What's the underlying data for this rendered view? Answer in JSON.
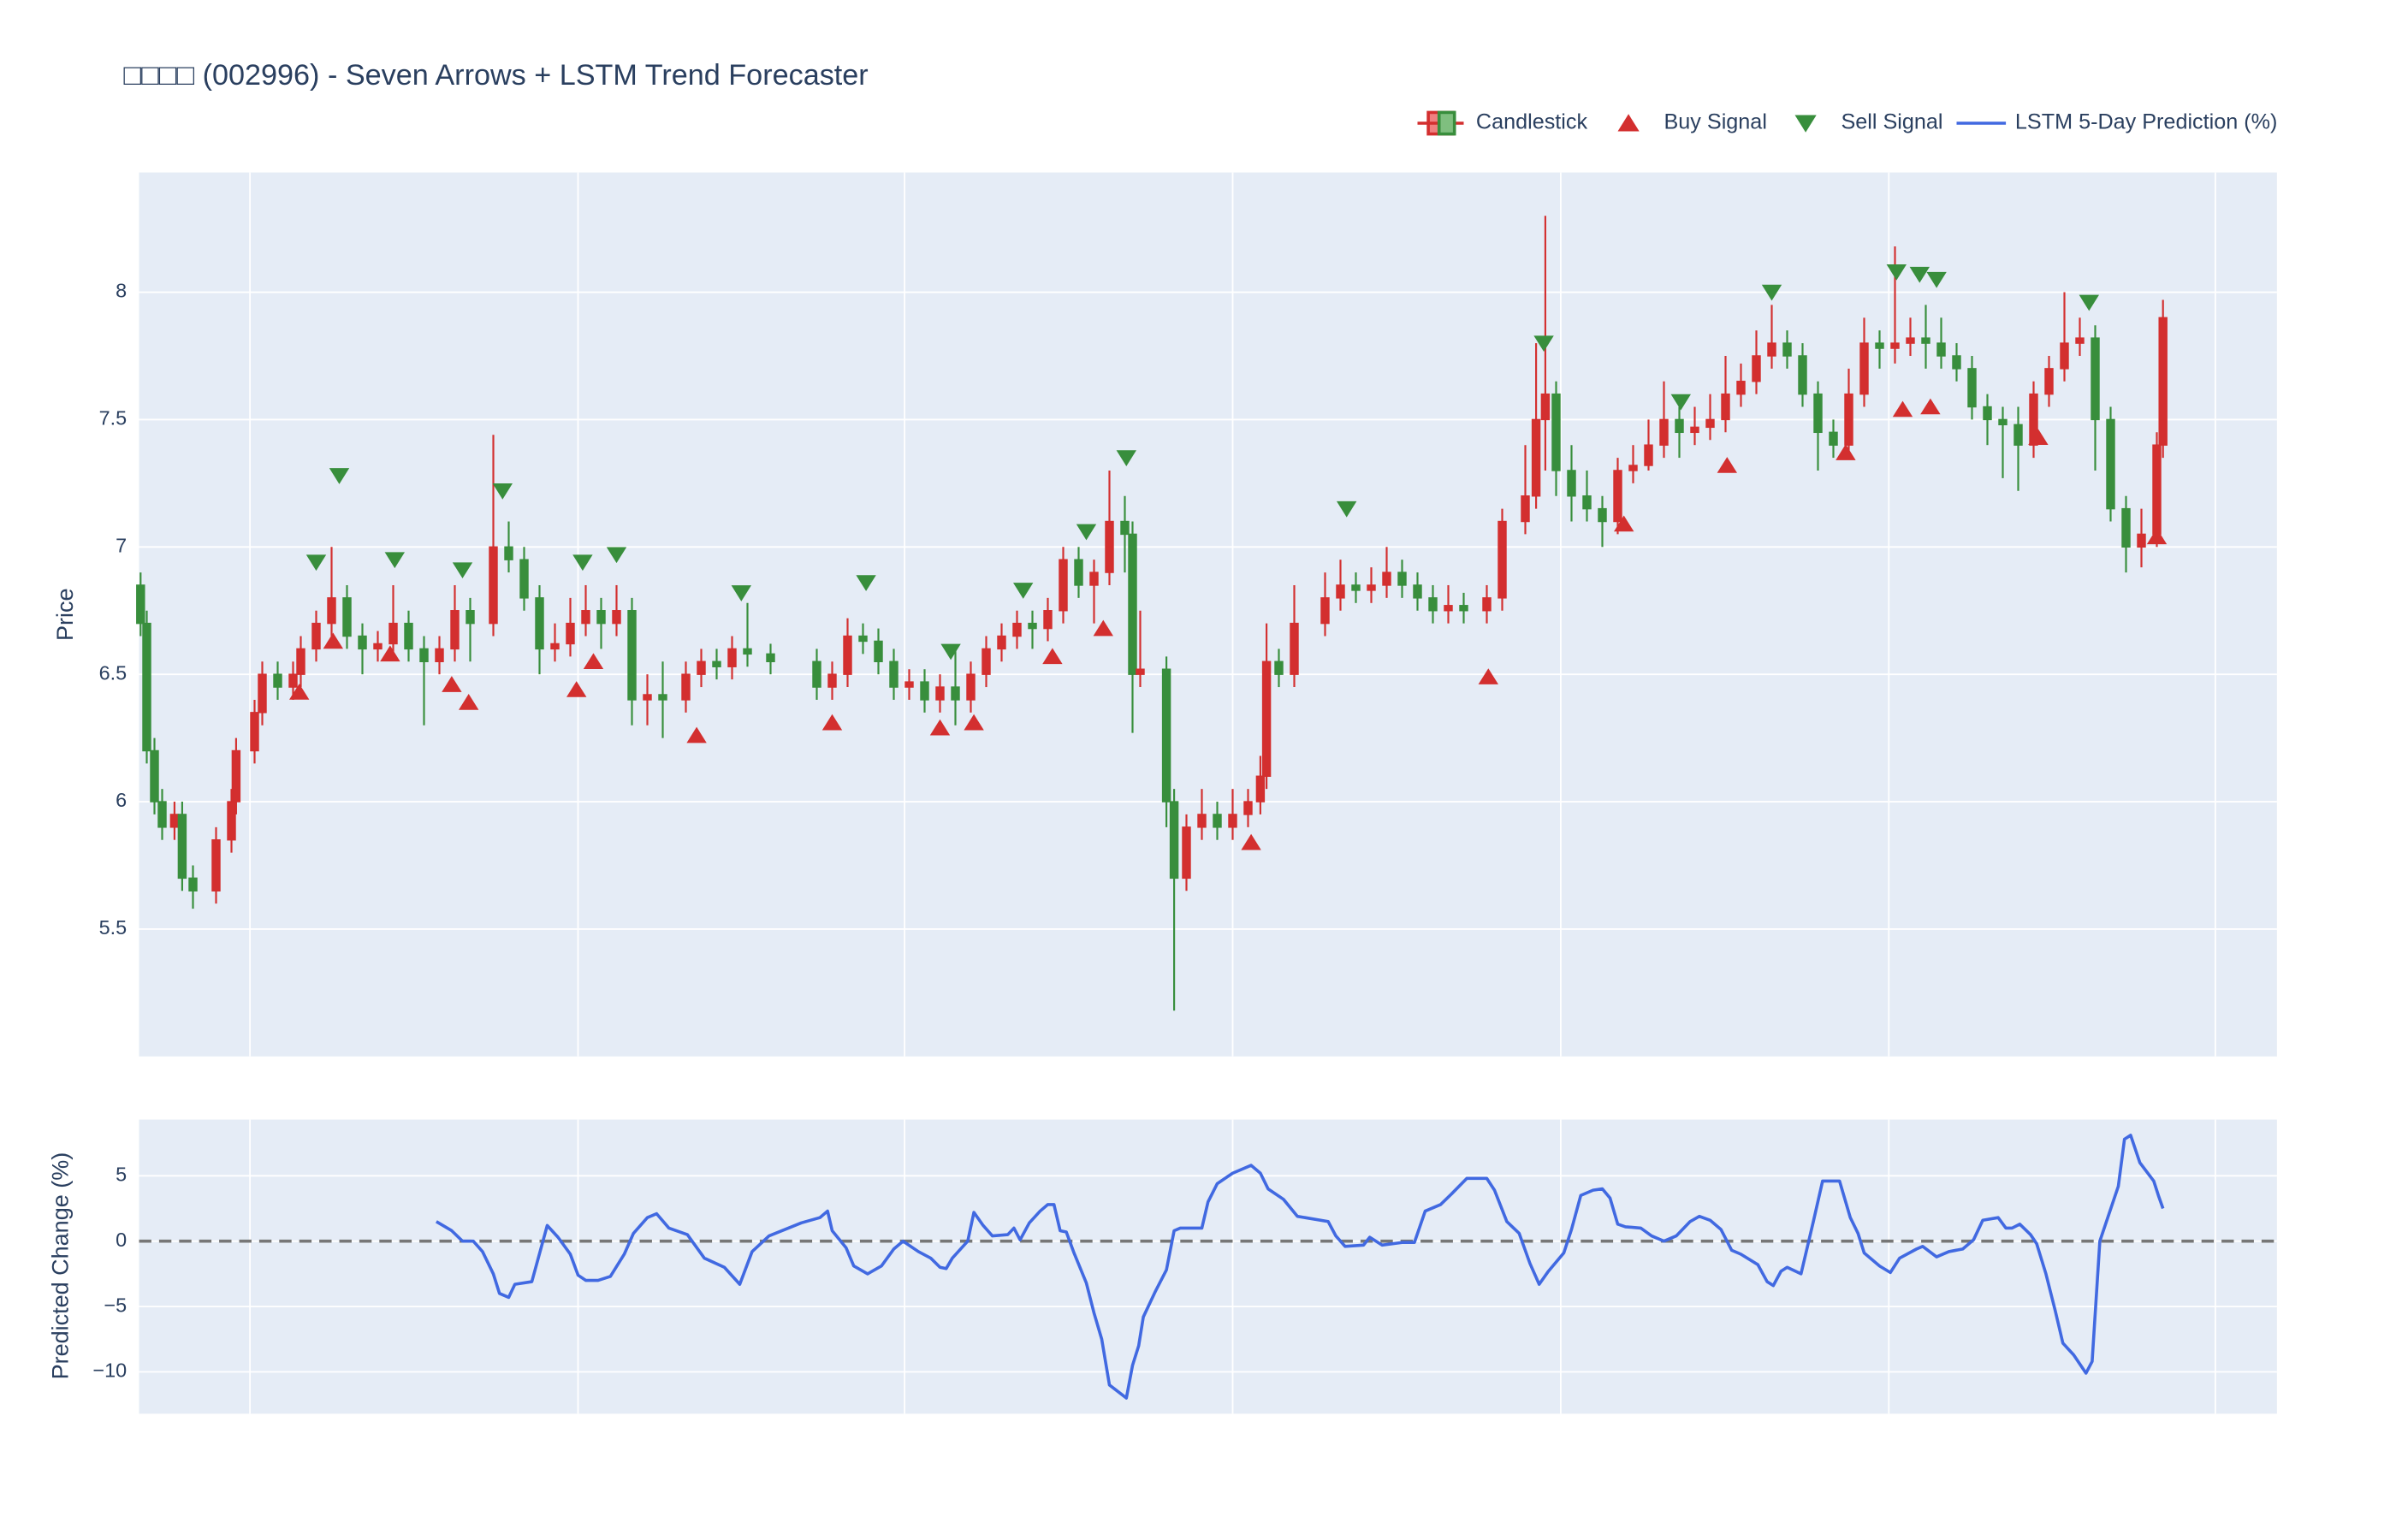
{
  "chart_data": [
    {
      "type": "candlestick",
      "title": "□□□□ (002996) - Seven Arrows + LSTM Trend Forecaster",
      "ylabel": "Price",
      "name": "Candlestick",
      "increasing_color": "#d32f2f",
      "decreasing_color": "#388e3c",
      "legend": "top-right",
      "grid": true,
      "xlim": [
        0,
        1388
      ],
      "xticks": [
        72,
        285,
        497,
        710,
        923,
        1136,
        1348
      ],
      "show_xtick_labels": false,
      "ylim": [
        5.0,
        8.47
      ],
      "yticks": [
        5.5,
        6,
        6.5,
        7,
        7.5,
        8
      ],
      "x": [
        1,
        5,
        10,
        15,
        23,
        28,
        35,
        50,
        60,
        63,
        75,
        80,
        90,
        100,
        105,
        115,
        125,
        135,
        145,
        155,
        165,
        175,
        185,
        195,
        205,
        215,
        230,
        240,
        250,
        260,
        270,
        280,
        290,
        300,
        310,
        320,
        330,
        340,
        355,
        365,
        375,
        385,
        395,
        410,
        440,
        450,
        460,
        470,
        480,
        490,
        500,
        510,
        520,
        530,
        540,
        550,
        560,
        570,
        580,
        590,
        600,
        610,
        620,
        630,
        640,
        645,
        650,
        667,
        672,
        680,
        690,
        700,
        710,
        720,
        728,
        732,
        740,
        750,
        770,
        780,
        790,
        800,
        810,
        820,
        830,
        840,
        850,
        860,
        875,
        885,
        900,
        907,
        913,
        920,
        930,
        940,
        950,
        960,
        970,
        980,
        990,
        1000,
        1010,
        1020,
        1030,
        1040,
        1050,
        1060,
        1070,
        1080,
        1090,
        1100,
        1110,
        1120,
        1130,
        1140,
        1150,
        1160,
        1170,
        1180,
        1190,
        1200,
        1210,
        1220,
        1230,
        1240,
        1250,
        1260,
        1270,
        1280,
        1290,
        1300,
        1310,
        1314
      ],
      "open": [
        6.85,
        6.7,
        6.2,
        6.0,
        5.9,
        5.95,
        5.7,
        5.65,
        5.85,
        6.0,
        6.2,
        6.35,
        6.5,
        6.45,
        6.5,
        6.6,
        6.7,
        6.8,
        6.65,
        6.6,
        6.62,
        6.7,
        6.6,
        6.55,
        6.6,
        6.75,
        6.7,
        7.0,
        6.95,
        6.8,
        6.6,
        6.62,
        6.7,
        6.75,
        6.7,
        6.75,
        6.4,
        6.42,
        6.4,
        6.5,
        6.55,
        6.53,
        6.6,
        6.58,
        6.55,
        6.45,
        6.5,
        6.65,
        6.63,
        6.55,
        6.45,
        6.47,
        6.4,
        6.45,
        6.4,
        6.5,
        6.6,
        6.65,
        6.7,
        6.68,
        6.75,
        6.95,
        6.85,
        6.9,
        7.1,
        7.05,
        6.5,
        6.52,
        6.0,
        5.7,
        5.9,
        5.95,
        5.9,
        5.95,
        6.0,
        6.1,
        6.55,
        6.5,
        6.7,
        6.8,
        6.85,
        6.83,
        6.85,
        6.9,
        6.85,
        6.8,
        6.75,
        6.77,
        6.75,
        6.8,
        7.1,
        7.2,
        7.5,
        7.6,
        7.3,
        7.2,
        7.15,
        7.1,
        7.3,
        7.32,
        7.4,
        7.5,
        7.45,
        7.47,
        7.5,
        7.6,
        7.65,
        7.75,
        7.8,
        7.75,
        7.6,
        7.45,
        7.4,
        7.6,
        7.8,
        7.78,
        7.8,
        7.82,
        7.8,
        7.75,
        7.7,
        7.55,
        7.5,
        7.48,
        7.4,
        7.6,
        7.7,
        7.8,
        7.82,
        7.5,
        7.15,
        7.0,
        7.05,
        7.4
      ],
      "high": [
        6.9,
        6.75,
        6.25,
        6.05,
        6.0,
        6.0,
        5.75,
        5.9,
        6.05,
        6.25,
        6.4,
        6.55,
        6.55,
        6.55,
        6.65,
        6.75,
        7.0,
        6.85,
        6.7,
        6.67,
        6.85,
        6.75,
        6.65,
        6.65,
        6.85,
        6.8,
        7.44,
        7.1,
        7.0,
        6.85,
        6.7,
        6.8,
        6.85,
        6.8,
        6.85,
        6.8,
        6.5,
        6.55,
        6.55,
        6.6,
        6.6,
        6.65,
        6.78,
        6.62,
        6.6,
        6.55,
        6.72,
        6.7,
        6.68,
        6.6,
        6.52,
        6.52,
        6.5,
        6.6,
        6.55,
        6.65,
        6.7,
        6.75,
        6.75,
        6.8,
        7.0,
        7.0,
        6.95,
        7.3,
        7.2,
        7.1,
        6.75,
        6.57,
        6.05,
        5.95,
        6.05,
        6.0,
        6.05,
        6.05,
        6.18,
        6.7,
        6.6,
        6.85,
        6.9,
        6.95,
        6.9,
        6.92,
        7.0,
        6.95,
        6.9,
        6.85,
        6.85,
        6.82,
        6.85,
        7.15,
        7.4,
        7.8,
        8.3,
        7.65,
        7.4,
        7.3,
        7.2,
        7.35,
        7.4,
        7.5,
        7.65,
        7.55,
        7.55,
        7.6,
        7.75,
        7.72,
        7.85,
        7.95,
        7.85,
        7.8,
        7.65,
        7.5,
        7.7,
        7.9,
        7.85,
        8.18,
        7.9,
        7.95,
        7.9,
        7.8,
        7.75,
        7.6,
        7.55,
        7.55,
        7.65,
        7.75,
        8.0,
        7.9,
        7.87,
        7.55,
        7.2,
        7.15,
        7.45,
        7.97
      ],
      "low": [
        6.65,
        6.15,
        5.95,
        5.85,
        5.85,
        5.65,
        5.58,
        5.6,
        5.8,
        5.95,
        6.15,
        6.3,
        6.4,
        6.4,
        6.45,
        6.55,
        6.65,
        6.6,
        6.5,
        6.55,
        6.57,
        6.55,
        6.3,
        6.5,
        6.55,
        6.55,
        6.65,
        6.9,
        6.75,
        6.5,
        6.55,
        6.57,
        6.65,
        6.6,
        6.65,
        6.3,
        6.3,
        6.25,
        6.35,
        6.45,
        6.48,
        6.48,
        6.53,
        6.5,
        6.4,
        6.4,
        6.45,
        6.58,
        6.5,
        6.4,
        6.4,
        6.35,
        6.35,
        6.3,
        6.35,
        6.45,
        6.55,
        6.6,
        6.6,
        6.63,
        6.7,
        6.8,
        6.7,
        6.85,
        6.9,
        6.27,
        6.45,
        5.9,
        5.18,
        5.65,
        5.85,
        5.85,
        5.85,
        5.9,
        5.95,
        6.05,
        6.45,
        6.45,
        6.65,
        6.75,
        6.78,
        6.78,
        6.8,
        6.8,
        6.75,
        6.7,
        6.7,
        6.7,
        6.7,
        6.75,
        7.05,
        7.15,
        7.3,
        7.2,
        7.1,
        7.1,
        7.0,
        7.05,
        7.25,
        7.3,
        7.35,
        7.35,
        7.4,
        7.42,
        7.45,
        7.55,
        7.6,
        7.7,
        7.7,
        7.55,
        7.3,
        7.35,
        7.35,
        7.55,
        7.7,
        7.72,
        7.75,
        7.7,
        7.7,
        7.65,
        7.5,
        7.4,
        7.27,
        7.22,
        7.35,
        7.55,
        7.65,
        7.75,
        7.3,
        7.1,
        6.9,
        6.92,
        7.0,
        7.35
      ],
      "close": [
        6.7,
        6.2,
        6.0,
        5.9,
        5.95,
        5.7,
        5.65,
        5.85,
        6.0,
        6.2,
        6.35,
        6.5,
        6.45,
        6.5,
        6.6,
        6.7,
        6.8,
        6.65,
        6.6,
        6.62,
        6.7,
        6.6,
        6.55,
        6.6,
        6.75,
        6.7,
        7.0,
        6.95,
        6.8,
        6.6,
        6.62,
        6.7,
        6.75,
        6.7,
        6.75,
        6.4,
        6.42,
        6.4,
        6.5,
        6.55,
        6.53,
        6.6,
        6.58,
        6.55,
        6.45,
        6.5,
        6.65,
        6.63,
        6.55,
        6.45,
        6.47,
        6.4,
        6.45,
        6.4,
        6.5,
        6.6,
        6.65,
        6.7,
        6.68,
        6.75,
        6.95,
        6.85,
        6.9,
        7.1,
        7.05,
        6.5,
        6.52,
        6.0,
        5.7,
        5.9,
        5.95,
        5.9,
        5.95,
        6.0,
        6.1,
        6.55,
        6.5,
        6.7,
        6.8,
        6.85,
        6.83,
        6.85,
        6.9,
        6.85,
        6.8,
        6.75,
        6.77,
        6.75,
        6.8,
        7.1,
        7.2,
        7.5,
        7.6,
        7.3,
        7.2,
        7.15,
        7.1,
        7.3,
        7.32,
        7.4,
        7.5,
        7.45,
        7.47,
        7.5,
        7.6,
        7.65,
        7.75,
        7.8,
        7.75,
        7.6,
        7.45,
        7.4,
        7.6,
        7.8,
        7.78,
        7.8,
        7.82,
        7.8,
        7.75,
        7.7,
        7.55,
        7.5,
        7.48,
        7.4,
        7.6,
        7.7,
        7.8,
        7.82,
        7.5,
        7.15,
        7.0,
        7.05,
        7.4,
        7.9
      ],
      "series": [
        {
          "name": "Buy Signal",
          "type": "scatter",
          "marker": "triangle-up",
          "color": "#d32f2f",
          "x": [
            104,
            126,
            163,
            203,
            214,
            284,
            295,
            362,
            450,
            520,
            542,
            593,
            626,
            722,
            876,
            964,
            1031,
            1108,
            1145,
            1163,
            1233,
            1310
          ],
          "values": [
            6.43,
            6.63,
            6.58,
            6.46,
            6.39,
            6.44,
            6.55,
            6.26,
            6.31,
            6.29,
            6.31,
            6.57,
            6.68,
            5.84,
            6.49,
            7.09,
            7.32,
            7.37,
            7.54,
            7.55,
            7.43,
            7.04
          ]
        },
        {
          "name": "Sell Signal",
          "type": "scatter",
          "marker": "triangle-down",
          "color": "#388e3c",
          "x": [
            115,
            130,
            166,
            210,
            236,
            288,
            310,
            391,
            472,
            527,
            574,
            615,
            641,
            784,
            912,
            1001,
            1060,
            1141,
            1156,
            1167,
            1266
          ],
          "values": [
            6.94,
            7.28,
            6.95,
            6.91,
            7.22,
            6.94,
            6.97,
            6.82,
            6.86,
            6.59,
            6.83,
            7.06,
            7.35,
            7.15,
            7.8,
            7.57,
            8.0,
            8.08,
            8.07,
            8.05,
            7.96
          ]
        }
      ]
    },
    {
      "type": "line",
      "ylabel": "Predicted Change (%)",
      "grid": true,
      "xlim": [
        0,
        1388
      ],
      "xticks": [
        72,
        285,
        497,
        710,
        923,
        1136,
        1348
      ],
      "show_xtick_labels": false,
      "ylim": [
        -13.2,
        9.3
      ],
      "yticks": [
        {
          "value": -10,
          "label": "−10"
        },
        {
          "value": -5,
          "label": "−5"
        },
        0,
        5
      ],
      "hline": 0,
      "hline_color": "#777777",
      "x": [
        193,
        203,
        210,
        217,
        223,
        230,
        234,
        240,
        244,
        255,
        265,
        272,
        280,
        285,
        290,
        298,
        306,
        315,
        321,
        330,
        336,
        344,
        356,
        367,
        380,
        390,
        398,
        409,
        430,
        442,
        447,
        450,
        459,
        464,
        473,
        482,
        490,
        496,
        506,
        514,
        520,
        524,
        528,
        538,
        542,
        548,
        554,
        564,
        568,
        572,
        578,
        585,
        590,
        594,
        598,
        602,
        607,
        615,
        620,
        625,
        630,
        641,
        645,
        649,
        652,
        660,
        667,
        672,
        676,
        690,
        694,
        700,
        710,
        722,
        728,
        733,
        743,
        752,
        772,
        777,
        783,
        795,
        799,
        807,
        820,
        828,
        835,
        845,
        852,
        862,
        875,
        880,
        888,
        896,
        903,
        909,
        915,
        925,
        930,
        936,
        944,
        950,
        955,
        960,
        965,
        975,
        982,
        990,
        998,
        1007,
        1013,
        1020,
        1027,
        1034,
        1040,
        1051,
        1057,
        1061,
        1066,
        1070,
        1079,
        1087,
        1093,
        1104,
        1111,
        1116,
        1120,
        1130,
        1137,
        1143,
        1154,
        1158,
        1167,
        1175,
        1184,
        1191,
        1197,
        1207,
        1212,
        1216,
        1221,
        1228,
        1232,
        1238,
        1244,
        1249,
        1256,
        1264,
        1268,
        1273,
        1285,
        1289,
        1293,
        1299,
        1308,
        1311,
        1314
      ],
      "series": [
        {
          "name": "LSTM 5-Day Prediction (%)",
          "color": "#4169e1",
          "values": [
            1.5,
            0.8,
            0,
            0,
            -0.8,
            -2.5,
            -4,
            -4.3,
            -3.3,
            -3.1,
            1.2,
            0.3,
            -1,
            -2.6,
            -3.0,
            -3.0,
            -2.7,
            -1,
            0.6,
            1.8,
            2.1,
            1,
            0.5,
            -1.3,
            -2,
            -3.3,
            -0.8,
            0.4,
            1.4,
            1.8,
            2.3,
            0.8,
            -0.5,
            -1.9,
            -2.5,
            -1.9,
            -0.6,
            0,
            -0.8,
            -1.3,
            -2,
            -2.1,
            -1.3,
            0,
            2.2,
            1.2,
            0.4,
            0.5,
            1,
            0.1,
            1.4,
            2.3,
            2.8,
            2.8,
            0.8,
            0.7,
            -0.9,
            -3.2,
            -5.5,
            -7.5,
            -11,
            -12,
            -9.5,
            -8,
            -5.8,
            -3.8,
            -2.2,
            0.8,
            1,
            1,
            3,
            4.4,
            5.2,
            5.8,
            5.2,
            4,
            3.2,
            1.9,
            1.5,
            0.4,
            -0.4,
            -0.3,
            0.3,
            -0.3,
            -0.1,
            -0.1,
            2.3,
            2.8,
            3.6,
            4.8,
            4.8,
            3.9,
            1.5,
            0.6,
            -1.7,
            -3.3,
            -2.3,
            -0.9,
            0.9,
            3.5,
            3.9,
            4.0,
            3.3,
            1.3,
            1.1,
            1.0,
            0.4,
            0,
            0.4,
            1.5,
            1.9,
            1.6,
            0.9,
            -0.7,
            -1,
            -1.8,
            -3.1,
            -3.4,
            -2.3,
            -2,
            -2.5,
            1.5,
            4.6,
            4.6,
            1.8,
            0.6,
            -0.9,
            -1.9,
            -2.4,
            -1.3,
            -0.6,
            -0.4,
            -1.2,
            -0.8,
            -0.6,
            0.1,
            1.6,
            1.8,
            1,
            1,
            1.3,
            0.5,
            -0.2,
            -2.5,
            -5.3,
            -7.8,
            -8.7,
            -10.1,
            -9.2,
            0,
            4.2,
            7.8,
            8.1,
            6,
            4.6,
            3.5,
            2.5
          ]
        }
      ]
    }
  ]
}
